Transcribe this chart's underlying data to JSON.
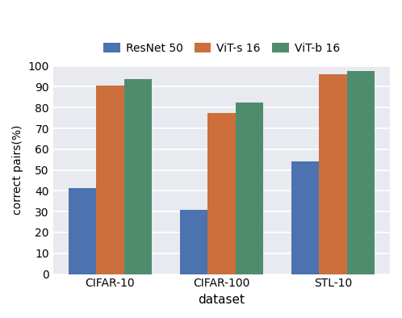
{
  "categories": [
    "CIFAR-10",
    "CIFAR-100",
    "STL-10"
  ],
  "series": [
    {
      "label": "ResNet 50",
      "values": [
        41.5,
        31.0,
        54.0
      ],
      "color": "#4c72b0"
    },
    {
      "label": "ViT-s 16",
      "values": [
        90.5,
        77.5,
        96.0
      ],
      "color": "#cc6f3c"
    },
    {
      "label": "ViT-b 16",
      "values": [
        93.5,
        82.5,
        97.5
      ],
      "color": "#4e8c6e"
    }
  ],
  "xlabel": "dataset",
  "ylabel": "correct pairs(%)",
  "ylim": [
    0,
    100
  ],
  "yticks": [
    0,
    10,
    20,
    30,
    40,
    50,
    60,
    70,
    80,
    90,
    100
  ],
  "plot_bg_color": "#e8eaf0",
  "fig_bg_color": "#ffffff",
  "bar_width": 0.25,
  "figsize": [
    4.98,
    3.94
  ],
  "dpi": 100,
  "grid_color": "#ffffff",
  "grid_linewidth": 1.2
}
